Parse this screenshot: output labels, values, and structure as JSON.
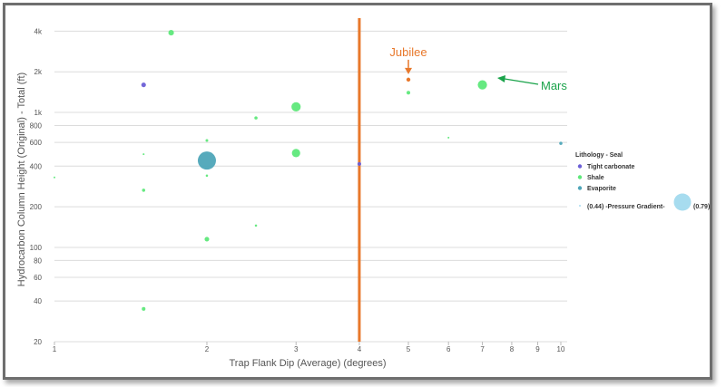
{
  "chart_data": {
    "type": "scatter",
    "title": "",
    "xlabel": "Trap Flank Dip (Average) (degrees)",
    "ylabel": "Hydrocarbon Column Height (Original) - Total (ft)",
    "x_scale": "log",
    "y_scale": "log",
    "xlim": [
      1,
      10
    ],
    "ylim": [
      20,
      5000
    ],
    "x_ticks": [
      {
        "value": 1,
        "label": "1"
      },
      {
        "value": 2,
        "label": "2"
      },
      {
        "value": 3,
        "label": "3"
      },
      {
        "value": 4,
        "label": "4"
      },
      {
        "value": 5,
        "label": "5"
      },
      {
        "value": 6,
        "label": "6"
      },
      {
        "value": 7,
        "label": "7"
      },
      {
        "value": 8,
        "label": "8"
      },
      {
        "value": 9,
        "label": "9"
      },
      {
        "value": 10,
        "label": "10"
      }
    ],
    "y_ticks": [
      {
        "value": 20,
        "label": "20"
      },
      {
        "value": 40,
        "label": "40"
      },
      {
        "value": 60,
        "label": "60"
      },
      {
        "value": 80,
        "label": "80"
      },
      {
        "value": 100,
        "label": "100"
      },
      {
        "value": 200,
        "label": "200"
      },
      {
        "value": 400,
        "label": "400"
      },
      {
        "value": 600,
        "label": "600"
      },
      {
        "value": 800,
        "label": "800"
      },
      {
        "value": 1000,
        "label": "1k"
      },
      {
        "value": 2000,
        "label": "2k"
      },
      {
        "value": 4000,
        "label": "4k"
      }
    ],
    "grid": "horizontal",
    "legend": {
      "position": "right",
      "title": "Lithology - Seal",
      "entries": [
        {
          "label": "Tight carbonate",
          "color": "#6b5fd6"
        },
        {
          "label": "Shale",
          "color": "#5ee87a"
        },
        {
          "label": "Evaporite",
          "color": "#4ea5b8"
        }
      ],
      "size_legend": {
        "min_label": "(0.44)",
        "title": "-Pressure Gradient-",
        "max_label": "(0.79)",
        "color": "#a7dcef"
      }
    },
    "series": [
      {
        "name": "Tight carbonate",
        "color": "#6b5fd6",
        "points": [
          {
            "x": 1.5,
            "y": 1600,
            "gradient": 0.5
          },
          {
            "x": 4.0,
            "y": 415,
            "gradient": 0.48
          }
        ]
      },
      {
        "name": "Shale",
        "color": "#5ee87a",
        "points": [
          {
            "x": 1.0,
            "y": 330,
            "gradient": 0.44
          },
          {
            "x": 1.5,
            "y": 490,
            "gradient": 0.44
          },
          {
            "x": 1.5,
            "y": 265,
            "gradient": 0.47
          },
          {
            "x": 1.5,
            "y": 35,
            "gradient": 0.48
          },
          {
            "x": 1.7,
            "y": 3900,
            "gradient": 0.52
          },
          {
            "x": 2.0,
            "y": 620,
            "gradient": 0.46
          },
          {
            "x": 2.0,
            "y": 340,
            "gradient": 0.45
          },
          {
            "x": 2.0,
            "y": 115,
            "gradient": 0.5
          },
          {
            "x": 2.5,
            "y": 910,
            "gradient": 0.47
          },
          {
            "x": 2.5,
            "y": 145,
            "gradient": 0.45
          },
          {
            "x": 3.0,
            "y": 1100,
            "gradient": 0.6
          },
          {
            "x": 3.0,
            "y": 500,
            "gradient": 0.58
          },
          {
            "x": 5.0,
            "y": 1400,
            "gradient": 0.48
          },
          {
            "x": 6.0,
            "y": 650,
            "gradient": 0.44
          },
          {
            "x": 7.0,
            "y": 1600,
            "gradient": 0.6
          }
        ]
      },
      {
        "name": "Evaporite",
        "color": "#4ea5b8",
        "points": [
          {
            "x": 2.0,
            "y": 440,
            "gradient": 0.79
          },
          {
            "x": 10.0,
            "y": 590,
            "gradient": 0.47
          }
        ]
      }
    ],
    "reference_line": {
      "x": 4,
      "color": "#e8782b"
    },
    "annotations": [
      {
        "text": "Jubilee",
        "color": "#e8782b",
        "point": {
          "x": 5.0,
          "y": 1750
        }
      },
      {
        "text": "Mars",
        "color": "#1aa34a",
        "point": {
          "x": 7.0,
          "y": 1600
        }
      }
    ]
  }
}
